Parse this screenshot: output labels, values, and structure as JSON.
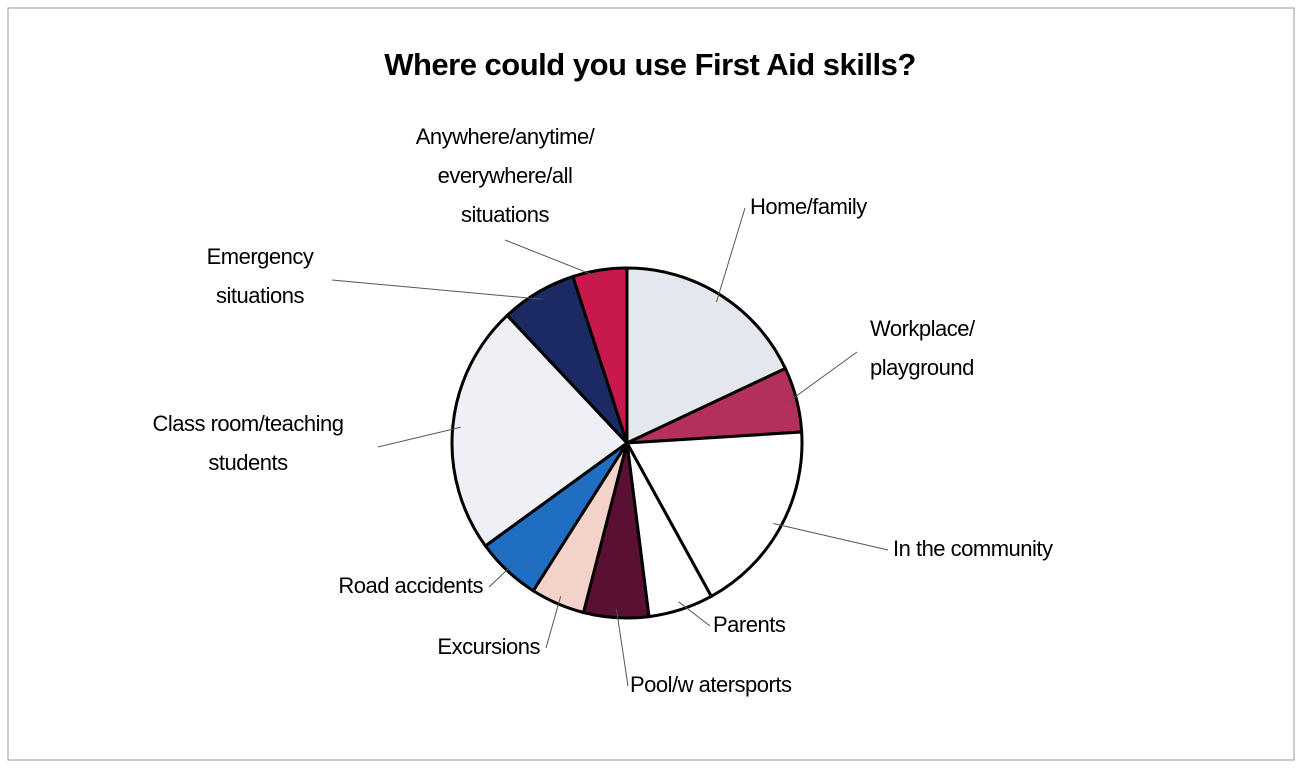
{
  "chart_data": {
    "type": "pie",
    "title": "Where could you use First Aid skills?",
    "categories": [
      "Home/family",
      "Workplace/\nplayground",
      "In the community",
      "Parents",
      "Pool/w atersports",
      "Excursions",
      "Road accidents",
      "Class room/teaching\nstudents",
      "Emergency\nsituations",
      "Anywhere/anytime/\neverywhere/all\nsituations"
    ],
    "values": [
      18,
      6,
      18,
      6,
      6,
      5,
      6,
      23,
      7,
      5
    ],
    "colors": [
      "#e4e8ee",
      "#b3305c",
      "#ffffff",
      "#ffffff",
      "#5a1032",
      "#f3d3c9",
      "#1f6ec2",
      "#eef0f5",
      "#1b2a62",
      "#c8194c"
    ]
  }
}
